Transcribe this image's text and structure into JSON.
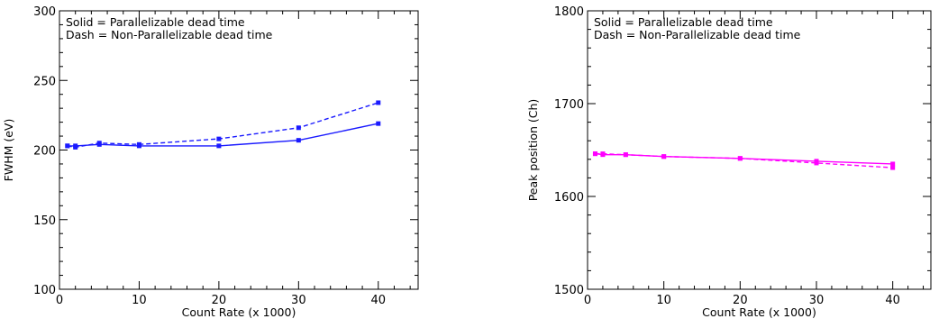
{
  "chart_data": [
    {
      "type": "line",
      "title": "",
      "xlabel": "Count Rate (x 1000)",
      "ylabel": "FWHM (eV)",
      "xlim": [
        0,
        45
      ],
      "ylim": [
        100,
        300
      ],
      "xticks": [
        "0",
        "10",
        "20",
        "30",
        "40"
      ],
      "yticks": [
        "100",
        "150",
        "200",
        "250",
        "300"
      ],
      "annotation": [
        "Solid = Parallelizable dead time",
        "Dash = Non-Parallelizable dead time"
      ],
      "color": "#1a1aff",
      "grid": false,
      "series": [
        {
          "name": "Parallelizable dead time",
          "style": "solid",
          "x": [
            1,
            2,
            5,
            10,
            20,
            30,
            40
          ],
          "y": [
            203,
            203,
            204,
            203,
            203,
            207,
            219
          ]
        },
        {
          "name": "Non-Parallelizable dead time",
          "style": "dash",
          "x": [
            1,
            2,
            5,
            10,
            20,
            30,
            40
          ],
          "y": [
            203,
            202,
            205,
            204,
            208,
            216,
            234
          ]
        }
      ]
    },
    {
      "type": "line",
      "title": "",
      "xlabel": "Count Rate (x 1000)",
      "ylabel": "Peak position (Ch)",
      "xlim": [
        0,
        45
      ],
      "ylim": [
        1500,
        1800
      ],
      "xticks": [
        "0",
        "10",
        "20",
        "30",
        "40"
      ],
      "yticks": [
        "1500",
        "1600",
        "1700",
        "1800"
      ],
      "annotation": [
        "Solid = Parallelizable dead time",
        "Dash = Non-Parallelizable dead time"
      ],
      "color": "#ff00ff",
      "grid": false,
      "series": [
        {
          "name": "Parallelizable dead time",
          "style": "solid",
          "x": [
            1,
            2,
            5,
            10,
            20,
            30,
            40
          ],
          "y": [
            1646,
            1645,
            1645,
            1643,
            1641,
            1638,
            1635
          ]
        },
        {
          "name": "Non-Parallelizable dead time",
          "style": "dash",
          "x": [
            1,
            2,
            5,
            10,
            20,
            30,
            40
          ],
          "y": [
            1646,
            1646,
            1645,
            1643,
            1641,
            1636,
            1631
          ]
        }
      ]
    }
  ]
}
